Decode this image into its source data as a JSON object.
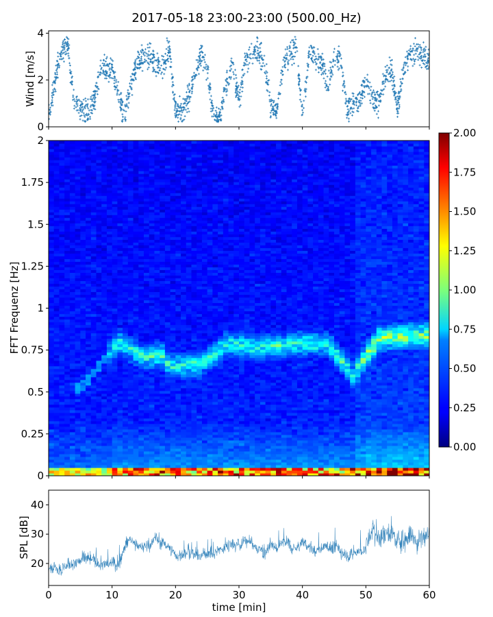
{
  "chart_data": [
    {
      "type": "scatter",
      "title": "2017-05-18 23:00-23:00 (500.00_Hz)",
      "xlabel": "",
      "ylabel": "Wind [m/s]",
      "xlim": [
        0,
        60
      ],
      "ylim": [
        0,
        4.1
      ],
      "yticks": [
        "0",
        "2",
        "4"
      ],
      "marker_color": "#1f77b4",
      "series": [
        {
          "x": [
            0,
            1,
            2,
            3,
            4,
            5,
            6,
            7,
            8,
            9,
            10,
            11,
            12,
            13,
            14,
            15,
            16,
            17,
            18,
            19,
            20,
            21,
            22,
            23,
            24,
            25,
            26,
            27,
            28,
            29,
            30,
            31,
            32,
            33,
            34,
            35,
            36,
            37,
            38,
            39,
            40,
            41,
            42,
            43,
            44,
            45,
            46,
            47,
            48,
            49,
            50,
            51,
            52,
            53,
            54,
            55,
            56,
            57,
            58,
            59,
            60
          ],
          "y": [
            0.5,
            2.0,
            3.2,
            3.5,
            1.0,
            0.7,
            0.6,
            0.9,
            2.3,
            2.6,
            2.4,
            1.5,
            0.4,
            1.8,
            2.8,
            3.0,
            3.0,
            2.7,
            2.5,
            3.4,
            0.7,
            0.6,
            1.2,
            2.2,
            3.1,
            2.5,
            0.4,
            0.4,
            1.9,
            2.6,
            1.0,
            2.8,
            3.0,
            3.2,
            2.9,
            0.8,
            0.7,
            2.7,
            3.2,
            3.3,
            0.5,
            2.9,
            3.0,
            2.8,
            1.7,
            2.9,
            3.0,
            0.8,
            1.0,
            1.2,
            2.0,
            1.3,
            1.0,
            2.2,
            2.4,
            0.8,
            2.6,
            3.1,
            3.2,
            3.0,
            2.8
          ]
        }
      ]
    },
    {
      "type": "heatmap",
      "title": "",
      "xlabel": "",
      "ylabel": "FFT Frequenz [Hz]",
      "xlim": [
        0,
        60
      ],
      "ylim": [
        0,
        2
      ],
      "yticks": [
        "0",
        "0.25",
        "0.5",
        "0.75",
        "1",
        "1.25",
        "1.5",
        "1.75",
        "2"
      ],
      "colormap": "jet",
      "colorbar": {
        "min": 0,
        "max": 2,
        "ticks": [
          "0.00",
          "0.25",
          "0.50",
          "0.75",
          "1.00",
          "1.25",
          "1.50",
          "1.75",
          "2.00"
        ]
      },
      "notes": "Predominantly blue (values about 0.2-0.4); bright band at about 0.6-0.8 Hz from about 10 to 60 min; high values near 0-0.05 Hz",
      "ridge_frequency_hz": [
        {
          "t": 5,
          "f": 0.52
        },
        {
          "t": 11,
          "f": 0.8
        },
        {
          "t": 15,
          "f": 0.71
        },
        {
          "t": 18,
          "f": 0.72
        },
        {
          "t": 19,
          "f": 0.66
        },
        {
          "t": 24,
          "f": 0.66
        },
        {
          "t": 28,
          "f": 0.79
        },
        {
          "t": 33,
          "f": 0.77
        },
        {
          "t": 40,
          "f": 0.79
        },
        {
          "t": 44,
          "f": 0.79
        },
        {
          "t": 48,
          "f": 0.6
        },
        {
          "t": 52,
          "f": 0.82
        },
        {
          "t": 58,
          "f": 0.84
        }
      ]
    },
    {
      "type": "line",
      "title": "",
      "xlabel": "time [min]",
      "ylabel": "SPL [dB]",
      "xlim": [
        0,
        60
      ],
      "ylim": [
        12.5,
        45
      ],
      "xticks": [
        "0",
        "10",
        "20",
        "30",
        "40",
        "50",
        "60"
      ],
      "yticks": [
        "20",
        "30",
        "40"
      ],
      "line_color": "#1f77b4",
      "series": [
        {
          "x": [
            0,
            1,
            2,
            3,
            4,
            5,
            6,
            7,
            8,
            9,
            10,
            11,
            12,
            13,
            14,
            15,
            16,
            17,
            18,
            19,
            20,
            21,
            22,
            23,
            24,
            25,
            26,
            27,
            28,
            29,
            30,
            31,
            32,
            33,
            34,
            35,
            36,
            37,
            38,
            39,
            40,
            41,
            42,
            43,
            44,
            45,
            46,
            47,
            48,
            49,
            50,
            51,
            52,
            53,
            54,
            55,
            56,
            57,
            58,
            59,
            60
          ],
          "y": [
            19,
            19,
            18.5,
            19.5,
            20,
            21,
            22,
            21,
            20,
            19.5,
            20,
            19,
            27,
            28,
            26,
            25,
            27,
            28,
            27,
            26,
            22,
            23,
            24,
            23,
            22,
            24,
            23,
            25,
            26,
            27,
            26,
            28,
            27,
            25,
            24,
            26,
            25,
            27,
            26,
            25,
            27,
            26,
            24,
            25,
            26,
            25,
            24,
            23,
            23,
            24,
            25,
            31,
            29,
            30,
            31,
            27,
            29,
            30,
            28,
            29,
            30
          ]
        }
      ]
    }
  ]
}
